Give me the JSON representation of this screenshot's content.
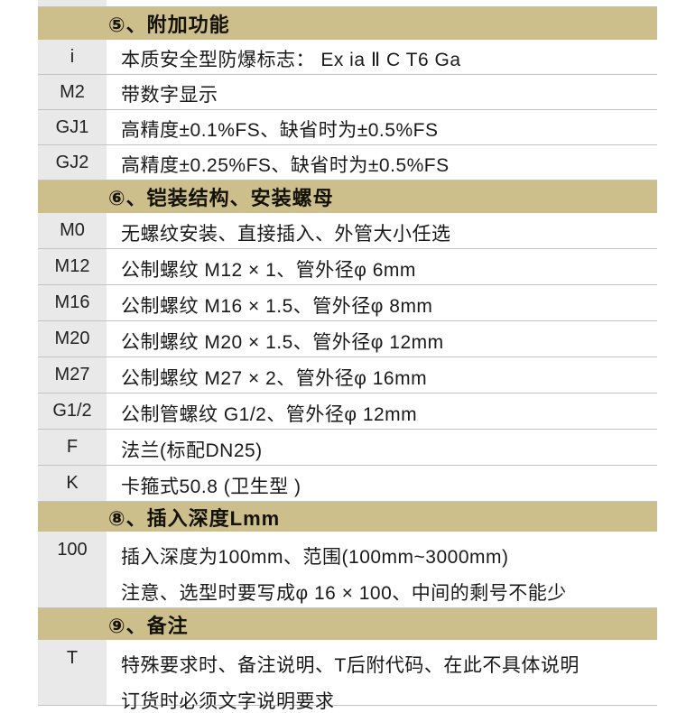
{
  "colors": {
    "header-bg": "#cdbf8c",
    "label-bg": "#e9e9e9",
    "divider": "#c3c3c3",
    "text": "#1a1a1a"
  },
  "sections": [
    {
      "title": "⑤、附加功能",
      "rows": [
        {
          "code": "i",
          "lines": [
            "本质安全型防爆标志：  Ex ia Ⅱ C T6 Ga"
          ]
        },
        {
          "code": "M2",
          "lines": [
            "带数字显示"
          ]
        },
        {
          "code": "GJ1",
          "lines": [
            "高精度±0.1%FS、缺省时为±0.5%FS"
          ]
        },
        {
          "code": "GJ2",
          "lines": [
            "高精度±0.25%FS、缺省时为±0.5%FS"
          ]
        }
      ]
    },
    {
      "title": "⑥、铠装结构、安装螺母",
      "rows": [
        {
          "code": "M0",
          "lines": [
            "无螺纹安装、直接插入、外管大小任选"
          ]
        },
        {
          "code": "M12",
          "lines": [
            "公制螺纹  M12 × 1、管外径φ 6mm"
          ]
        },
        {
          "code": "M16",
          "lines": [
            "公制螺纹  M16 × 1.5、管外径φ 8mm"
          ]
        },
        {
          "code": "M20",
          "lines": [
            "公制螺纹  M20 × 1.5、管外径φ 12mm"
          ]
        },
        {
          "code": "M27",
          "lines": [
            "公制螺纹  M27 × 2、管外径φ 16mm"
          ]
        },
        {
          "code": "G1/2",
          "lines": [
            "公制管螺纹 G1/2、管外径φ 12mm"
          ]
        },
        {
          "code": "F",
          "lines": [
            "法兰(标配DN25)"
          ]
        },
        {
          "code": "K",
          "lines": [
            "卡箍式50.8 (卫生型 )"
          ]
        }
      ]
    },
    {
      "title": "⑧、插入深度Lmm",
      "rows": [
        {
          "code": "100",
          "lines": [
            "插入深度为100mm、范围(100mm~3000mm)",
            "注意、选型时要写成φ 16 × 100、中间的剩号不能少"
          ]
        }
      ]
    },
    {
      "title": "⑨、备注",
      "rows": [
        {
          "code": "T",
          "lines": [
            "特殊要求时、备注说明、T后附代码、在此不具体说明",
            "订货时必须文字说明要求"
          ]
        }
      ]
    }
  ]
}
